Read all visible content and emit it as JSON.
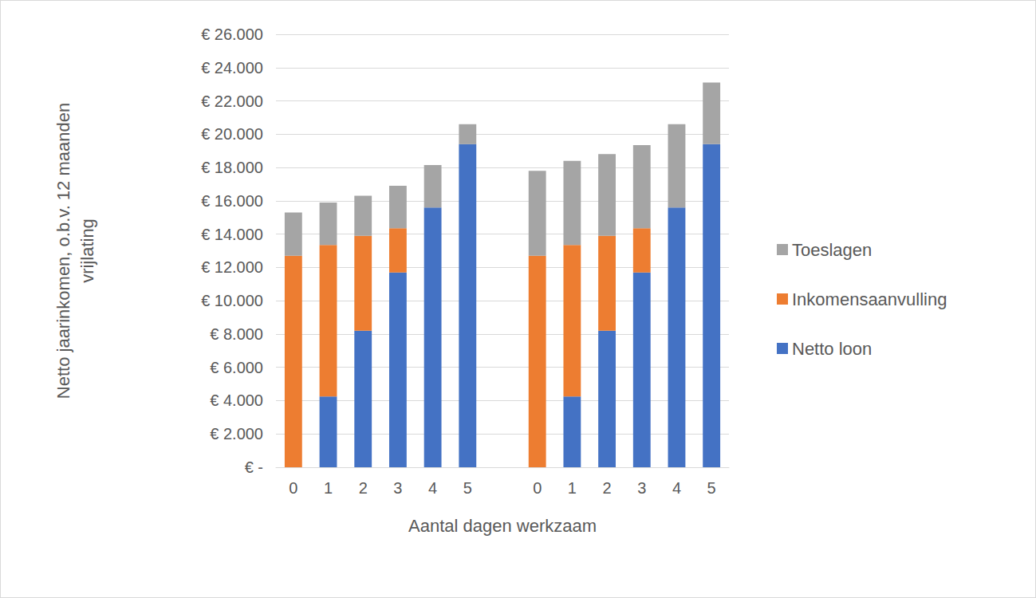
{
  "chart_data": {
    "type": "bar",
    "stacked": true,
    "grid": true,
    "legend": "right",
    "x_label": "Aantal dagen werkzaam",
    "y_label": "Netto jaarinkomen, o.b.v. 12 maanden\nvrijlating",
    "categories": [
      "0",
      "1",
      "2",
      "3",
      "4",
      "5",
      null,
      "0",
      "1",
      "2",
      "3",
      "4",
      "5"
    ],
    "series": [
      {
        "name": "Netto loon",
        "color": "#4472c4",
        "values": [
          0,
          4250,
          8200,
          11700,
          15600,
          19400,
          null,
          0,
          4250,
          8200,
          11700,
          15600,
          19400
        ]
      },
      {
        "name": "Inkomensaanvulling",
        "color": "#ed7d31",
        "values": [
          12700,
          9100,
          5700,
          2650,
          0,
          0,
          null,
          12700,
          9100,
          5700,
          2650,
          0,
          0
        ]
      },
      {
        "name": "Toeslagen",
        "color": "#a5a5a5",
        "values": [
          2600,
          2550,
          2400,
          2550,
          2550,
          1200,
          null,
          5100,
          5050,
          4900,
          5000,
          5000,
          3700
        ]
      }
    ],
    "ylim": [
      0,
      26000
    ],
    "yticks": [
      {
        "value": 0,
        "label": "€ -"
      },
      {
        "value": 2000,
        "label": "€ 2.000"
      },
      {
        "value": 4000,
        "label": "€ 4.000"
      },
      {
        "value": 6000,
        "label": "€ 6.000"
      },
      {
        "value": 8000,
        "label": "€ 8.000"
      },
      {
        "value": 10000,
        "label": "€ 10.000"
      },
      {
        "value": 12000,
        "label": "€ 12.000"
      },
      {
        "value": 14000,
        "label": "€ 14.000"
      },
      {
        "value": 16000,
        "label": "€ 16.000"
      },
      {
        "value": 18000,
        "label": "€ 18.000"
      },
      {
        "value": 20000,
        "label": "€ 20.000"
      },
      {
        "value": 22000,
        "label": "€ 22.000"
      },
      {
        "value": 24000,
        "label": "€ 24.000"
      },
      {
        "value": 26000,
        "label": "€ 26.000"
      }
    ]
  }
}
